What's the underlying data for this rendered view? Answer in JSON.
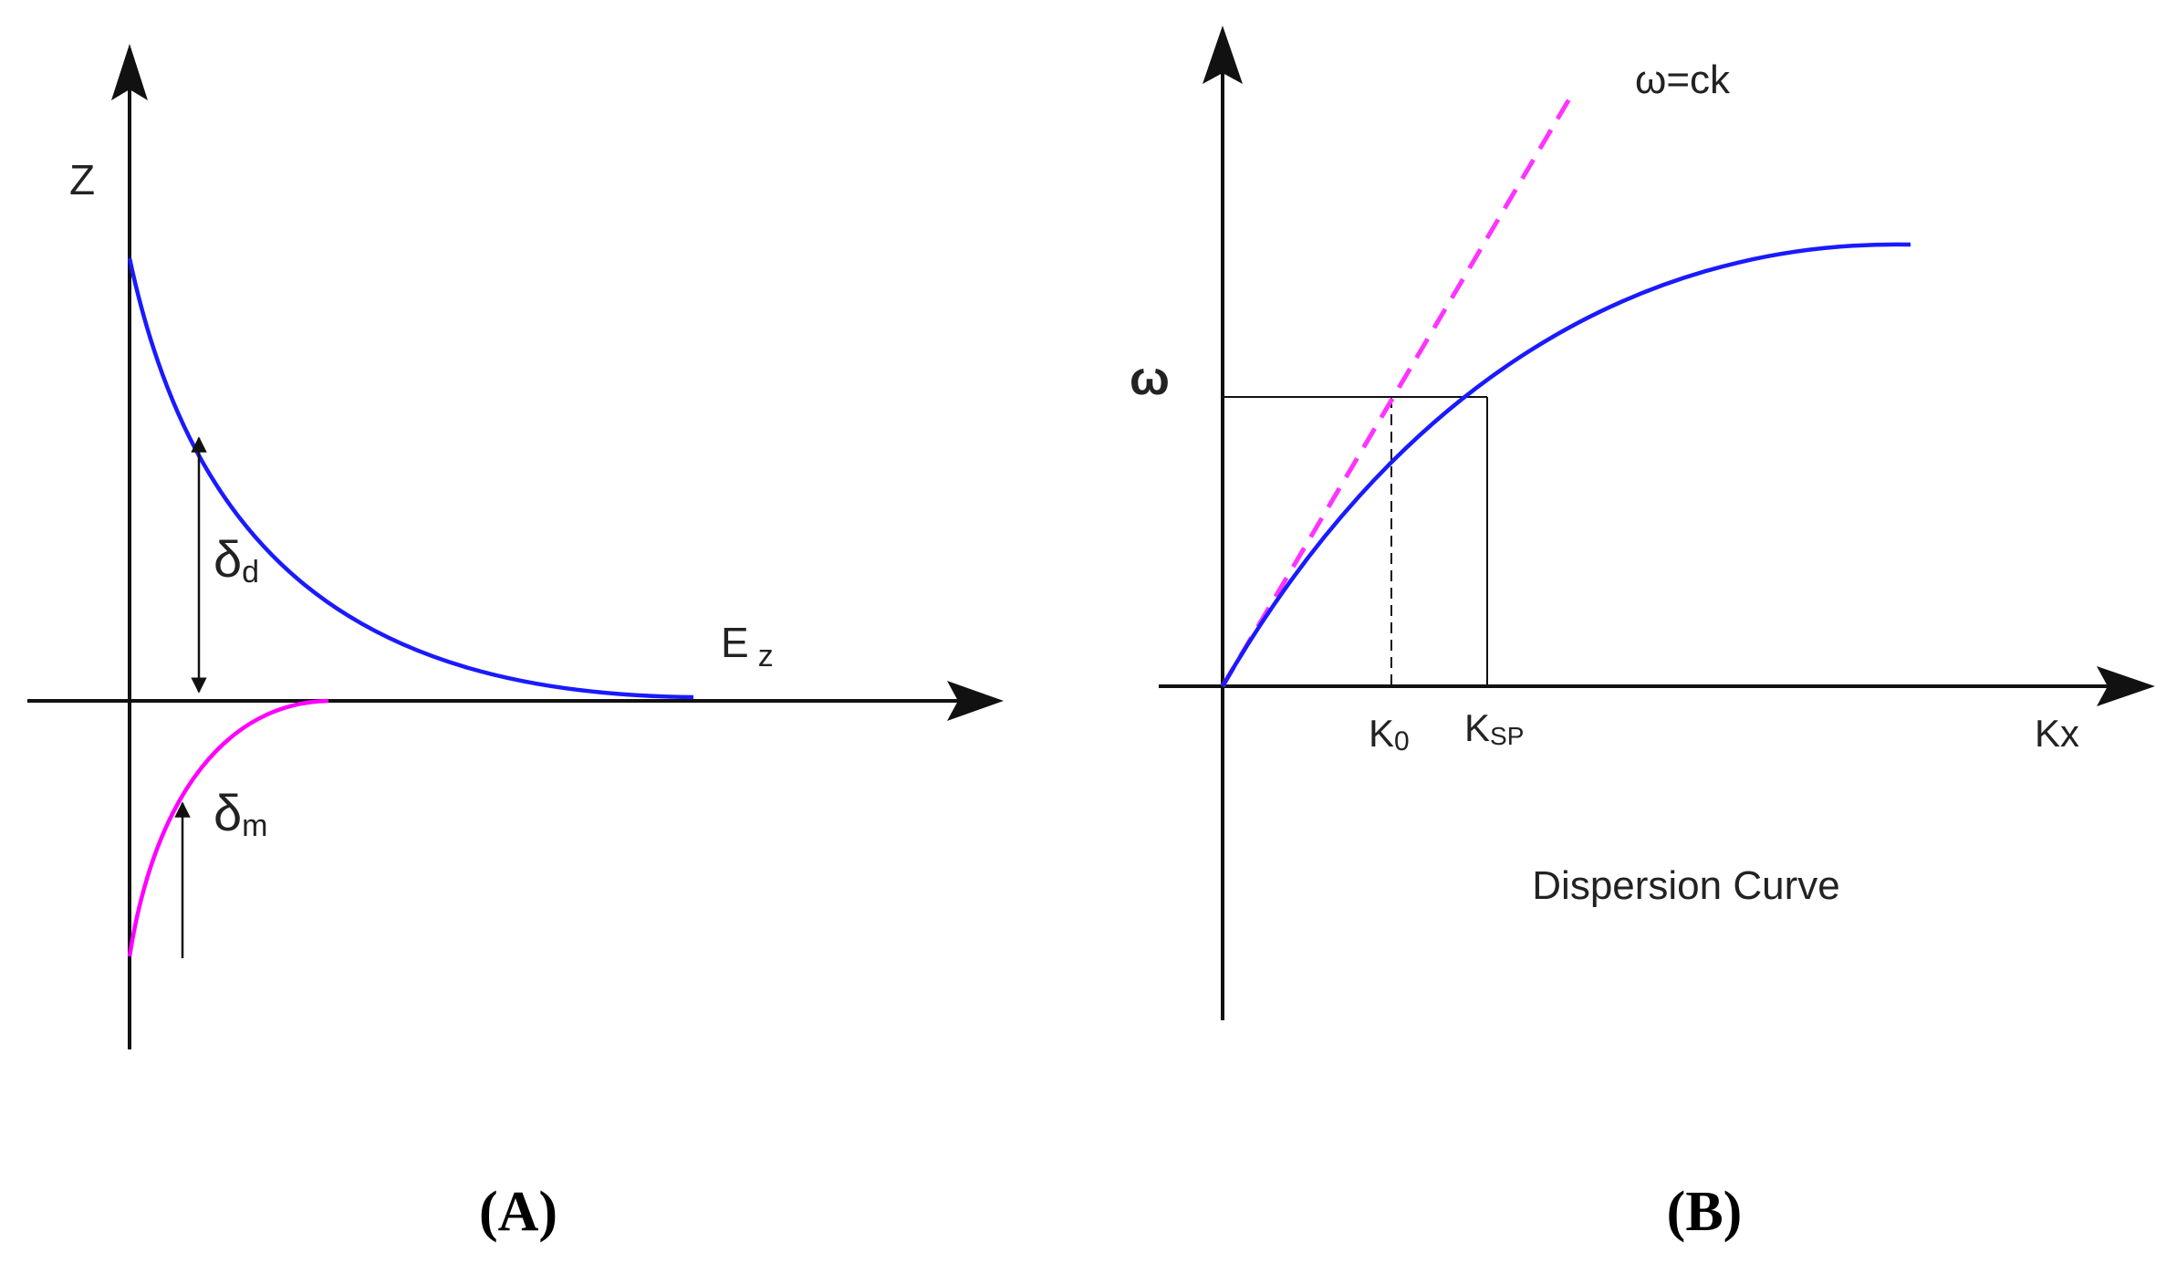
{
  "panel_a": {
    "caption": "(A)",
    "axis_z_label": "Z",
    "field_label_main": "E",
    "field_label_sub": "z",
    "delta_d_main": "δ",
    "delta_d_sub": "d",
    "delta_m_main": "δ",
    "delta_m_sub": "m",
    "colors": {
      "dielectric_curve": "#1a1aff",
      "metal_curve": "#ff00ff",
      "axes": "#111111"
    }
  },
  "panel_b": {
    "caption": "(B)",
    "y_axis_label": "ω",
    "x_axis_label": "Kx",
    "light_line_label": "ω=ck",
    "k0_main": "K",
    "k0_sub": "0",
    "ksp_main": "K",
    "ksp_sub": "SP",
    "subtitle": "Dispersion Curve",
    "colors": {
      "sp_curve": "#1a1aff",
      "light_line": "#ff33ff",
      "axes": "#111111"
    }
  }
}
